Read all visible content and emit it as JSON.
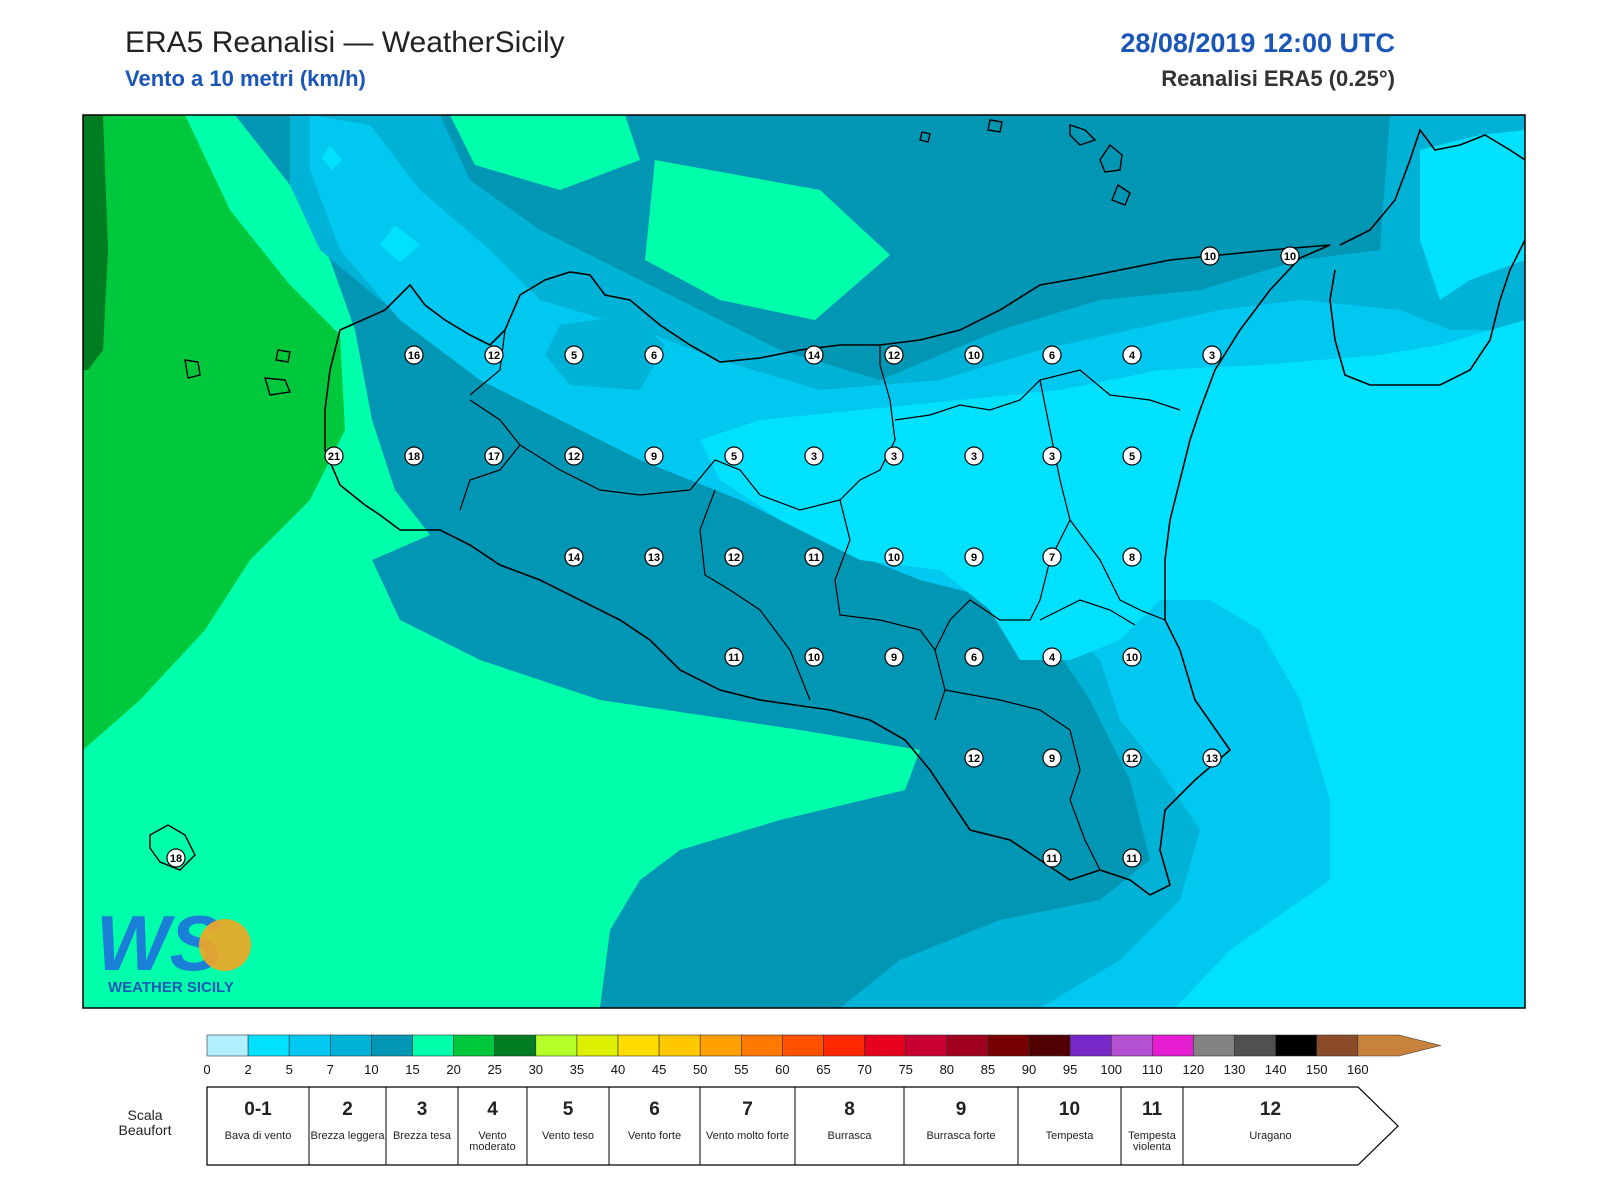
{
  "header": {
    "title": "ERA5 Reanalisi — WeatherSicily",
    "subtitle": "Vento a 10 metri (km/h)",
    "datetime": "28/08/2019 12:00 UTC",
    "resolution": "Reanalisi ERA5 (0.25°)"
  },
  "logo": {
    "text": "WEATHER SICILY",
    "letters": "WS"
  },
  "colors": {
    "band_0_2": "#b3f0ff",
    "band_2_5": "#00e1ff",
    "band_5_7": "#00c8f0",
    "band_7_10": "#00b2d6",
    "band_10_15": "#0096b4",
    "band_15_20": "#00ffaa",
    "band_20_25": "#00c83c",
    "band_25_30": "#007d23",
    "coastline": "#000000"
  },
  "station_labels": [
    {
      "value": "10"
    },
    {
      "value": "10"
    },
    {
      "value": "16"
    },
    {
      "value": "12"
    },
    {
      "value": "5"
    },
    {
      "value": "6"
    },
    {
      "value": "14"
    },
    {
      "value": "12"
    },
    {
      "value": "10"
    },
    {
      "value": "6"
    },
    {
      "value": "4"
    },
    {
      "value": "3"
    },
    {
      "value": "21"
    },
    {
      "value": "18"
    },
    {
      "value": "17"
    },
    {
      "value": "12"
    },
    {
      "value": "9"
    },
    {
      "value": "5"
    },
    {
      "value": "3"
    },
    {
      "value": "3"
    },
    {
      "value": "3"
    },
    {
      "value": "3"
    },
    {
      "value": "5"
    },
    {
      "value": "14"
    },
    {
      "value": "13"
    },
    {
      "value": "12"
    },
    {
      "value": "11"
    },
    {
      "value": "10"
    },
    {
      "value": "9"
    },
    {
      "value": "7"
    },
    {
      "value": "8"
    },
    {
      "value": "11"
    },
    {
      "value": "10"
    },
    {
      "value": "9"
    },
    {
      "value": "6"
    },
    {
      "value": "4"
    },
    {
      "value": "10"
    },
    {
      "value": "12"
    },
    {
      "value": "9"
    },
    {
      "value": "12"
    },
    {
      "value": "13"
    },
    {
      "value": "18"
    },
    {
      "value": "11"
    },
    {
      "value": "11"
    }
  ],
  "legend": {
    "colors": [
      "#b3f0ff",
      "#00e1ff",
      "#00c8f0",
      "#00b2d6",
      "#0096b4",
      "#00ffaa",
      "#00c83c",
      "#007d23",
      "#b4ff28",
      "#dcf000",
      "#ffdc00",
      "#ffc800",
      "#ffa000",
      "#ff7800",
      "#ff5000",
      "#ff2800",
      "#e6001e",
      "#c80032",
      "#a0001e",
      "#780000",
      "#500000",
      "#7828c8",
      "#b450d2",
      "#e61ed2",
      "#828282",
      "#505050",
      "#000000",
      "#8c4b28",
      "#c8823c"
    ],
    "ticks": [
      "0",
      "2",
      "5",
      "7",
      "10",
      "15",
      "20",
      "25",
      "30",
      "35",
      "40",
      "45",
      "50",
      "55",
      "60",
      "65",
      "70",
      "75",
      "80",
      "85",
      "90",
      "95",
      "100",
      "110",
      "120",
      "130",
      "140",
      "150",
      "160"
    ]
  },
  "beaufort": {
    "label_line1": "Scala",
    "label_line2": "Beaufort",
    "cells": [
      {
        "num": "0-1",
        "name": "Bava di vento"
      },
      {
        "num": "2",
        "name": "Brezza leggera"
      },
      {
        "num": "3",
        "name": "Brezza tesa"
      },
      {
        "num": "4",
        "name": "Vento moderato"
      },
      {
        "num": "5",
        "name": "Vento teso"
      },
      {
        "num": "6",
        "name": "Vento forte"
      },
      {
        "num": "7",
        "name": "Vento molto forte"
      },
      {
        "num": "8",
        "name": "Burrasca"
      },
      {
        "num": "9",
        "name": "Burrasca forte"
      },
      {
        "num": "10",
        "name": "Tempesta"
      },
      {
        "num": "11",
        "name": "Tempesta violenta"
      },
      {
        "num": "12",
        "name": "Uragano"
      }
    ]
  }
}
